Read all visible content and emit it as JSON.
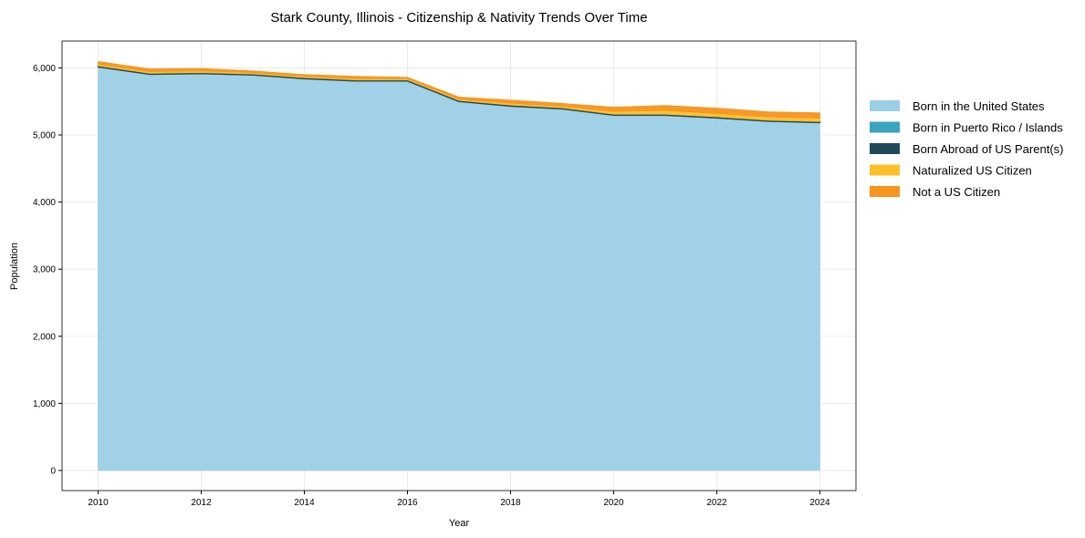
{
  "chart_data": {
    "type": "area",
    "stacked": true,
    "title": "Stark County, Illinois - Citizenship & Nativity Trends Over Time",
    "xlabel": "Year",
    "ylabel": "Population",
    "x": [
      2010,
      2011,
      2012,
      2013,
      2014,
      2015,
      2016,
      2017,
      2018,
      2019,
      2020,
      2021,
      2022,
      2023,
      2024
    ],
    "xticks": [
      "2010",
      "2012",
      "2014",
      "2016",
      "2018",
      "2020",
      "2022",
      "2024"
    ],
    "yticks": [
      "0",
      "1,000",
      "2,000",
      "3,000",
      "4,000",
      "5,000",
      "6,000"
    ],
    "ylim": [
      -300,
      6400
    ],
    "xlim": [
      2009.3,
      2024.7
    ],
    "grid": true,
    "legend_position": "right",
    "series": [
      {
        "name": "Born in the United States",
        "color": "#9ccfe6",
        "values": [
          6010,
          5900,
          5910,
          5890,
          5835,
          5800,
          5800,
          5495,
          5425,
          5385,
          5290,
          5290,
          5250,
          5200,
          5180
        ]
      },
      {
        "name": "Born in Puerto Rico / Islands",
        "color": "#3aa3bd",
        "values": [
          5,
          5,
          5,
          5,
          5,
          5,
          5,
          5,
          5,
          5,
          5,
          5,
          5,
          5,
          5
        ]
      },
      {
        "name": "Born Abroad of US Parent(s)",
        "color": "#1e4a5a",
        "values": [
          15,
          15,
          15,
          15,
          15,
          15,
          15,
          15,
          15,
          15,
          15,
          15,
          15,
          15,
          15
        ]
      },
      {
        "name": "Naturalized US Citizen",
        "color": "#ffc02a",
        "values": [
          25,
          25,
          25,
          20,
          20,
          20,
          20,
          20,
          30,
          25,
          40,
          55,
          50,
          50,
          50
        ]
      },
      {
        "name": "Not a US Citizen",
        "color": "#f7941d",
        "values": [
          40,
          40,
          35,
          25,
          25,
          35,
          20,
          30,
          45,
          40,
          65,
          75,
          80,
          75,
          80
        ]
      }
    ]
  }
}
